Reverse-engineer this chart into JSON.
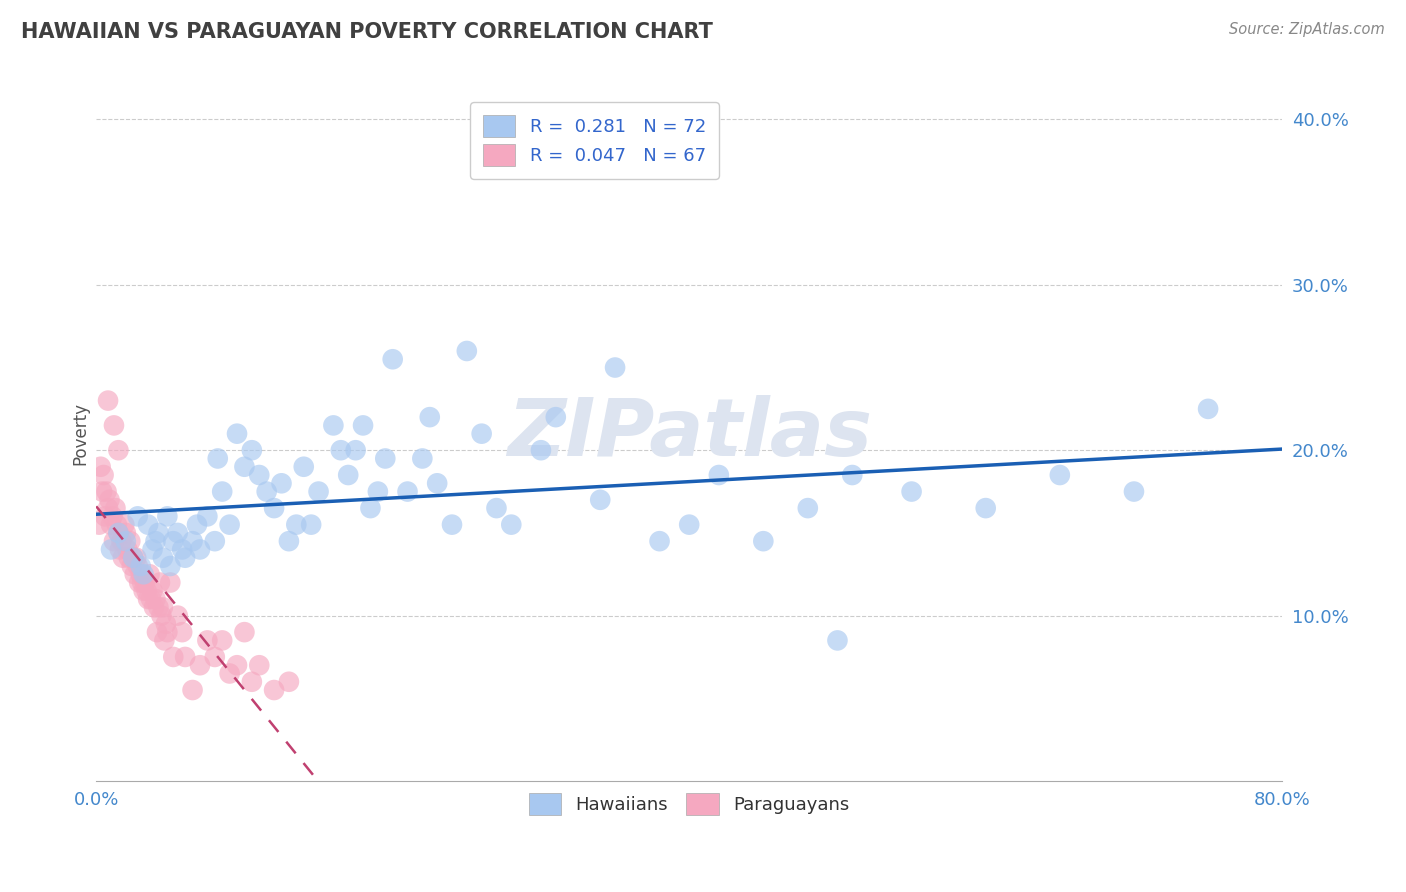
{
  "title": "HAWAIIAN VS PARAGUAYAN POVERTY CORRELATION CHART",
  "source_text": "Source: ZipAtlas.com",
  "ylabel": "Poverty",
  "xlim": [
    0.0,
    0.8
  ],
  "ylim": [
    0.0,
    0.42
  ],
  "ytick_positions": [
    0.1,
    0.2,
    0.3,
    0.4
  ],
  "ytick_labels": [
    "10.0%",
    "20.0%",
    "30.0%",
    "40.0%"
  ],
  "hawaiian_R": 0.281,
  "hawaiian_N": 72,
  "paraguayan_R": 0.047,
  "paraguayan_N": 67,
  "hawaiian_color": "#a8c8f0",
  "paraguayan_color": "#f5a8c0",
  "hawaiian_line_color": "#1a5fb4",
  "paraguayan_line_color": "#c04070",
  "background_color": "#ffffff",
  "watermark_text": "ZIPatlas",
  "watermark_color": "#dde4f0",
  "grid_color": "#cccccc",
  "title_color": "#404040",
  "title_fontsize": 15,
  "legend_text_color": "#3366cc",
  "hawaiian_x": [
    0.01,
    0.015,
    0.02,
    0.025,
    0.028,
    0.03,
    0.032,
    0.035,
    0.038,
    0.04,
    0.042,
    0.045,
    0.048,
    0.05,
    0.052,
    0.055,
    0.058,
    0.06,
    0.065,
    0.068,
    0.07,
    0.075,
    0.08,
    0.082,
    0.085,
    0.09,
    0.095,
    0.1,
    0.105,
    0.11,
    0.115,
    0.12,
    0.125,
    0.13,
    0.135,
    0.14,
    0.145,
    0.15,
    0.16,
    0.165,
    0.17,
    0.175,
    0.18,
    0.185,
    0.19,
    0.195,
    0.2,
    0.21,
    0.22,
    0.225,
    0.23,
    0.24,
    0.26,
    0.28,
    0.3,
    0.31,
    0.34,
    0.38,
    0.4,
    0.42,
    0.45,
    0.48,
    0.51,
    0.55,
    0.6,
    0.65,
    0.7,
    0.75,
    0.25,
    0.27,
    0.35,
    0.5
  ],
  "hawaiian_y": [
    0.14,
    0.15,
    0.145,
    0.135,
    0.16,
    0.13,
    0.125,
    0.155,
    0.14,
    0.145,
    0.15,
    0.135,
    0.16,
    0.13,
    0.145,
    0.15,
    0.14,
    0.135,
    0.145,
    0.155,
    0.14,
    0.16,
    0.145,
    0.195,
    0.175,
    0.155,
    0.21,
    0.19,
    0.2,
    0.185,
    0.175,
    0.165,
    0.18,
    0.145,
    0.155,
    0.19,
    0.155,
    0.175,
    0.215,
    0.2,
    0.185,
    0.2,
    0.215,
    0.165,
    0.175,
    0.195,
    0.255,
    0.175,
    0.195,
    0.22,
    0.18,
    0.155,
    0.21,
    0.155,
    0.2,
    0.22,
    0.17,
    0.145,
    0.155,
    0.185,
    0.145,
    0.165,
    0.185,
    0.175,
    0.165,
    0.185,
    0.175,
    0.225,
    0.26,
    0.165,
    0.25,
    0.085
  ],
  "paraguayan_x": [
    0.002,
    0.003,
    0.004,
    0.005,
    0.006,
    0.007,
    0.008,
    0.009,
    0.01,
    0.011,
    0.012,
    0.013,
    0.014,
    0.015,
    0.016,
    0.017,
    0.018,
    0.019,
    0.02,
    0.021,
    0.022,
    0.023,
    0.024,
    0.025,
    0.026,
    0.027,
    0.028,
    0.029,
    0.03,
    0.031,
    0.032,
    0.033,
    0.034,
    0.035,
    0.036,
    0.037,
    0.038,
    0.039,
    0.04,
    0.041,
    0.042,
    0.043,
    0.044,
    0.045,
    0.046,
    0.047,
    0.048,
    0.05,
    0.052,
    0.055,
    0.058,
    0.06,
    0.065,
    0.07,
    0.075,
    0.08,
    0.085,
    0.09,
    0.095,
    0.1,
    0.105,
    0.11,
    0.12,
    0.13,
    0.008,
    0.012,
    0.015
  ],
  "paraguayan_y": [
    0.155,
    0.19,
    0.175,
    0.185,
    0.16,
    0.175,
    0.165,
    0.17,
    0.155,
    0.16,
    0.145,
    0.165,
    0.155,
    0.15,
    0.14,
    0.145,
    0.135,
    0.155,
    0.15,
    0.14,
    0.135,
    0.145,
    0.13,
    0.135,
    0.125,
    0.135,
    0.13,
    0.12,
    0.125,
    0.12,
    0.115,
    0.12,
    0.115,
    0.11,
    0.125,
    0.11,
    0.115,
    0.105,
    0.11,
    0.09,
    0.105,
    0.12,
    0.1,
    0.105,
    0.085,
    0.095,
    0.09,
    0.12,
    0.075,
    0.1,
    0.09,
    0.075,
    0.055,
    0.07,
    0.085,
    0.075,
    0.085,
    0.065,
    0.07,
    0.09,
    0.06,
    0.07,
    0.055,
    0.06,
    0.23,
    0.215,
    0.2
  ]
}
